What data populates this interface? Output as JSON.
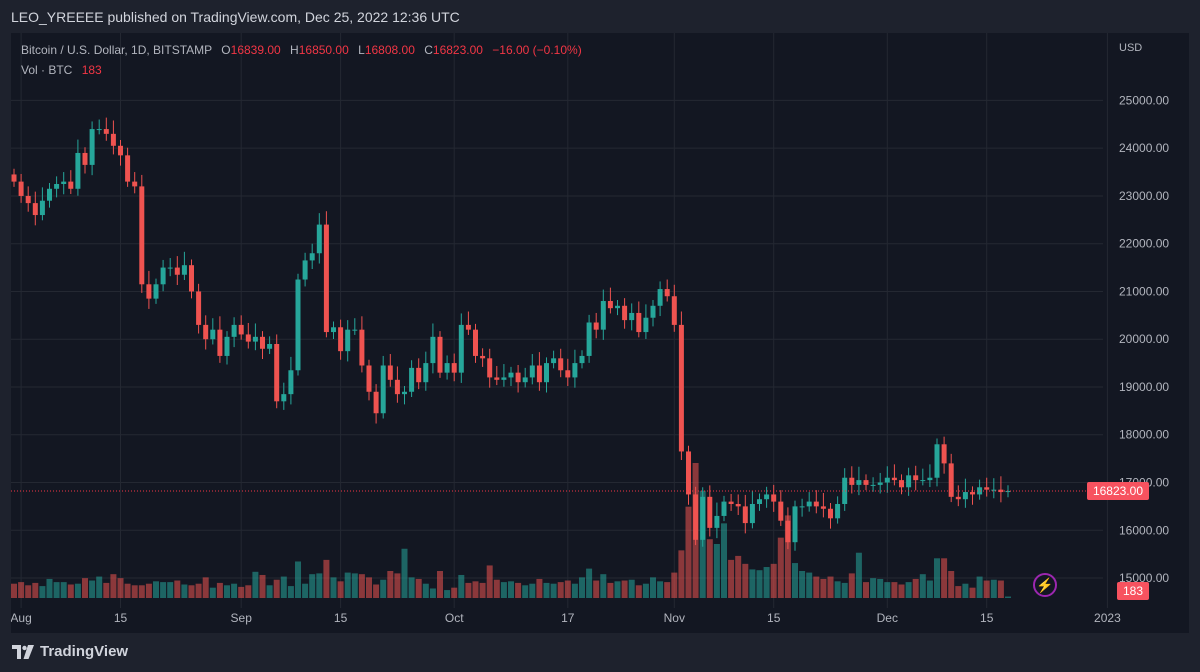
{
  "header": {
    "publisher": "LEO_YREEEE published on TradingView.com, Dec 25, 2022 12:36 UTC"
  },
  "legend": {
    "symbol": "Bitcoin / U.S. Dollar, 1D, BITSTAMP",
    "open_label": "O",
    "open_value": "16839.00",
    "high_label": "H",
    "high_value": "16850.00",
    "low_label": "L",
    "low_value": "16808.00",
    "close_label": "C",
    "close_value": "16823.00",
    "change": "−16.00 (−0.10%)",
    "volume_label": "Vol · BTC",
    "volume_value": "183"
  },
  "price_axis": {
    "currency": "USD"
  },
  "last_price_tag": "16823.00",
  "last_volume_tag": "183",
  "brand": {
    "name": "TradingView"
  },
  "colors": {
    "up": "#26a69a",
    "down": "#ef5350",
    "background": "#131722",
    "grid": "#242832",
    "text": "#b2b5be"
  },
  "icons": {
    "alert": "lightning-icon",
    "logo": "tradingview-logo-icon"
  },
  "chart_data": {
    "type": "candlestick",
    "symbol": "BTCUSD",
    "interval": "1D",
    "ylim": [
      14600,
      25800
    ],
    "y_ticks": [
      15000,
      16000,
      17000,
      18000,
      19000,
      20000,
      21000,
      22000,
      23000,
      24000,
      25000
    ],
    "x_ticks": [
      {
        "label": "Aug",
        "date": "2022-08-01"
      },
      {
        "label": "15",
        "date": "2022-08-15"
      },
      {
        "label": "Sep",
        "date": "2022-09-01"
      },
      {
        "label": "15",
        "date": "2022-09-15"
      },
      {
        "label": "Oct",
        "date": "2022-10-01"
      },
      {
        "label": "17",
        "date": "2022-10-17"
      },
      {
        "label": "Nov",
        "date": "2022-11-01"
      },
      {
        "label": "15",
        "date": "2022-11-15"
      },
      {
        "label": "Dec",
        "date": "2022-12-01"
      },
      {
        "label": "15",
        "date": "2022-12-15"
      },
      {
        "label": "2023",
        "date": "2023-01-01"
      }
    ],
    "start_date": "2022-07-31",
    "closes": [
      23300,
      23000,
      22850,
      22600,
      22900,
      23150,
      23250,
      23300,
      23150,
      23900,
      23650,
      24400,
      24400,
      24300,
      24050,
      23850,
      23300,
      23200,
      21150,
      20850,
      21150,
      21500,
      21500,
      21350,
      21550,
      21000,
      20300,
      20000,
      20200,
      19650,
      20050,
      20300,
      20100,
      19950,
      20050,
      19800,
      19900,
      18700,
      18850,
      19350,
      21250,
      21650,
      21800,
      22400,
      20150,
      20250,
      19750,
      20200,
      20200,
      19450,
      18900,
      18450,
      19450,
      19150,
      18850,
      18900,
      19400,
      19100,
      19500,
      20050,
      19300,
      19500,
      19300,
      20300,
      20200,
      19650,
      19600,
      19200,
      19150,
      19200,
      19300,
      19100,
      19200,
      19450,
      19100,
      19500,
      19600,
      19350,
      19200,
      19500,
      19650,
      20350,
      20200,
      20800,
      20650,
      20700,
      20400,
      20550,
      20150,
      20450,
      20700,
      21050,
      20900,
      20300,
      17650,
      16750,
      15800,
      16700,
      16050,
      16300,
      16600,
      16550,
      16500,
      16150,
      16550,
      16650,
      16750,
      16600,
      16200,
      15750,
      16500,
      16500,
      16600,
      16500,
      16450,
      16250,
      16550,
      17100,
      16950,
      17050,
      16950,
      16950,
      17000,
      17100,
      17050,
      16900,
      17150,
      17050,
      17050,
      17100,
      17800,
      17400,
      16700,
      16650,
      16800,
      16750,
      16900,
      16850,
      16850,
      16800,
      16823
    ],
    "volume_values_btc": [
      1800,
      2000,
      1600,
      1900,
      1500,
      2400,
      2000,
      2000,
      1700,
      1800,
      2500,
      2200,
      2700,
      1900,
      3000,
      2500,
      1800,
      1600,
      1600,
      1800,
      2100,
      2000,
      2000,
      2200,
      1700,
      1600,
      1800,
      2600,
      1300,
      1900,
      1600,
      1800,
      1400,
      1600,
      3300,
      2900,
      1600,
      2300,
      2700,
      1500,
      4600,
      1800,
      3000,
      3100,
      4800,
      2600,
      2100,
      3200,
      3100,
      3000,
      2600,
      1700,
      2300,
      3400,
      3100,
      6200,
      2600,
      2400,
      1800,
      1200,
      3400,
      1000,
      1300,
      2900,
      1900,
      2100,
      1900,
      4100,
      2300,
      2000,
      2100,
      1900,
      1600,
      1800,
      2400,
      1900,
      1800,
      2000,
      2200,
      1800,
      2600,
      3700,
      2200,
      3000,
      1900,
      2100,
      2200,
      2300,
      1600,
      1800,
      2600,
      2100,
      2000,
      3200,
      6000,
      11500,
      17000,
      13500,
      7400,
      6800,
      9400,
      4800,
      5300,
      4300,
      3600,
      3500,
      3900,
      4300,
      7600,
      10400,
      4400,
      3400,
      3200,
      2700,
      2400,
      2700,
      2100,
      1900,
      3100,
      5700,
      2000,
      2500,
      2400,
      2000,
      2000,
      1700,
      2000,
      2400,
      3000,
      2200,
      5000,
      5000,
      3400,
      1500,
      1800,
      1300,
      2700,
      2200,
      2300,
      2200,
      183
    ]
  }
}
